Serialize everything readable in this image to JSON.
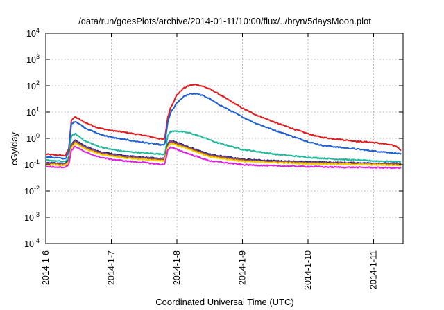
{
  "chart_data": {
    "type": "line",
    "title": "/data/run/goesPlots/archive/2014-01-11/10:00/flux/../bryn/5daysMoon.plot",
    "xlabel": "Coordinated Universal Time (UTC)",
    "ylabel": "cGy/day",
    "yscale": "log",
    "ylim": [
      0.0001,
      10000
    ],
    "xlim": [
      0,
      5.45
    ],
    "grid": true,
    "legend": "none",
    "x_ticks": [
      {
        "value": 0,
        "label": "2014-1-6"
      },
      {
        "value": 1,
        "label": "2014-1-7"
      },
      {
        "value": 2,
        "label": "2014-1-8"
      },
      {
        "value": 3,
        "label": "2014-1-9"
      },
      {
        "value": 4,
        "label": "2014-1-10"
      },
      {
        "value": 5,
        "label": "2014-1-11"
      }
    ],
    "y_ticks": [
      {
        "value": 0.0001,
        "base": "10",
        "exp": "-4"
      },
      {
        "value": 0.001,
        "base": "10",
        "exp": "-3"
      },
      {
        "value": 0.01,
        "base": "10",
        "exp": "-2"
      },
      {
        "value": 0.1,
        "base": "10",
        "exp": "-1"
      },
      {
        "value": 1,
        "base": "10",
        "exp": "0"
      },
      {
        "value": 10,
        "base": "10",
        "exp": "1"
      },
      {
        "value": 100,
        "base": "10",
        "exp": "2"
      },
      {
        "value": 1000,
        "base": "10",
        "exp": "3"
      },
      {
        "value": 10000,
        "base": "10",
        "exp": "4"
      }
    ],
    "series": [
      {
        "name": "red",
        "color": "#e31a1c",
        "x": [
          0,
          0.3,
          0.35,
          0.39,
          0.45,
          0.6,
          0.8,
          1.0,
          1.2,
          1.5,
          1.8,
          1.82,
          1.86,
          1.9,
          2.0,
          2.1,
          2.2,
          2.3,
          2.4,
          2.5,
          2.6,
          2.8,
          3.0,
          3.2,
          3.5,
          3.8,
          4.0,
          4.2,
          4.5,
          4.8,
          5.0,
          5.2,
          5.35,
          5.42
        ],
        "values": [
          0.25,
          0.22,
          0.4,
          5,
          6.5,
          4,
          2.5,
          2.0,
          1.7,
          1.3,
          0.9,
          1.2,
          6,
          14,
          45,
          80,
          105,
          110,
          95,
          75,
          55,
          28,
          14,
          8,
          4,
          2.2,
          1.5,
          1.1,
          0.9,
          0.75,
          0.7,
          0.6,
          0.5,
          0.35
        ]
      },
      {
        "name": "blue",
        "color": "#1f5fd6",
        "x": [
          0,
          0.3,
          0.35,
          0.39,
          0.45,
          0.6,
          0.8,
          1.0,
          1.2,
          1.5,
          1.8,
          1.82,
          1.86,
          1.9,
          2.0,
          2.1,
          2.2,
          2.3,
          2.4,
          2.5,
          2.6,
          2.8,
          3.0,
          3.2,
          3.5,
          3.8,
          4.0,
          4.2,
          4.5,
          4.8,
          5.0,
          5.2,
          5.35,
          5.42
        ],
        "values": [
          0.2,
          0.17,
          0.3,
          3.5,
          4.5,
          2.5,
          1.5,
          1.1,
          0.9,
          0.7,
          0.55,
          0.7,
          4,
          9,
          22,
          38,
          50,
          50,
          42,
          32,
          22,
          12,
          6.5,
          3.8,
          2.0,
          1.1,
          0.75,
          0.55,
          0.45,
          0.38,
          0.33,
          0.3,
          0.27,
          0.25
        ]
      },
      {
        "name": "teal",
        "color": "#1fb89a",
        "x": [
          0,
          0.3,
          0.35,
          0.39,
          0.45,
          0.6,
          0.8,
          1.0,
          1.2,
          1.5,
          1.8,
          1.82,
          1.86,
          1.9,
          2.0,
          2.2,
          2.4,
          2.6,
          3.0,
          3.5,
          4.0,
          4.5,
          5.0,
          5.42
        ],
        "values": [
          0.15,
          0.13,
          0.2,
          1.2,
          1.5,
          0.8,
          0.5,
          0.38,
          0.32,
          0.28,
          0.25,
          0.3,
          1.2,
          1.8,
          1.9,
          1.6,
          1.1,
          0.7,
          0.38,
          0.25,
          0.19,
          0.16,
          0.14,
          0.13
        ]
      },
      {
        "name": "navy",
        "color": "#262673",
        "x": [
          0,
          0.3,
          0.35,
          0.39,
          0.45,
          0.6,
          0.8,
          1.0,
          1.2,
          1.5,
          1.8,
          1.82,
          1.86,
          1.9,
          2.0,
          2.2,
          2.5,
          3.0,
          3.5,
          4.0,
          4.5,
          5.0,
          5.42
        ],
        "values": [
          0.12,
          0.11,
          0.15,
          0.6,
          0.85,
          0.5,
          0.32,
          0.26,
          0.22,
          0.19,
          0.17,
          0.2,
          0.6,
          0.85,
          0.7,
          0.45,
          0.25,
          0.16,
          0.14,
          0.13,
          0.12,
          0.115,
          0.11
        ]
      },
      {
        "name": "purple",
        "color": "#8e44ad",
        "x": [
          0,
          0.3,
          0.35,
          0.39,
          0.45,
          0.6,
          0.8,
          1.0,
          1.2,
          1.5,
          1.8,
          1.82,
          1.86,
          1.9,
          2.0,
          2.2,
          2.5,
          3.0,
          3.5,
          4.0,
          4.5,
          5.0,
          5.42
        ],
        "values": [
          0.115,
          0.105,
          0.14,
          0.55,
          0.78,
          0.46,
          0.3,
          0.24,
          0.2,
          0.18,
          0.16,
          0.19,
          0.55,
          0.78,
          0.64,
          0.42,
          0.23,
          0.15,
          0.13,
          0.12,
          0.115,
          0.11,
          0.105
        ]
      },
      {
        "name": "brown",
        "color": "#a0522d",
        "x": [
          0,
          0.3,
          0.35,
          0.39,
          0.45,
          0.6,
          0.8,
          1.0,
          1.2,
          1.5,
          1.8,
          1.82,
          1.86,
          1.9,
          2.0,
          2.2,
          2.5,
          3.0,
          3.5,
          4.0,
          4.5,
          5.0,
          5.42
        ],
        "values": [
          0.108,
          0.1,
          0.13,
          0.5,
          0.72,
          0.43,
          0.28,
          0.225,
          0.19,
          0.17,
          0.15,
          0.18,
          0.5,
          0.72,
          0.6,
          0.4,
          0.22,
          0.145,
          0.125,
          0.115,
          0.11,
          0.105,
          0.1
        ]
      },
      {
        "name": "yellow",
        "color": "#f5d000",
        "x": [
          0,
          0.3,
          0.35,
          0.39,
          0.45,
          0.6,
          0.8,
          1.0,
          1.2,
          1.5,
          1.8,
          1.82,
          1.86,
          1.9,
          2.0,
          2.2,
          2.5,
          3.0,
          3.5,
          4.0,
          4.5,
          5.0,
          5.42
        ],
        "values": [
          0.1,
          0.095,
          0.12,
          0.45,
          0.65,
          0.4,
          0.26,
          0.21,
          0.18,
          0.16,
          0.14,
          0.17,
          0.45,
          0.65,
          0.55,
          0.37,
          0.2,
          0.135,
          0.12,
          0.11,
          0.105,
          0.1,
          0.095
        ]
      },
      {
        "name": "magenta",
        "color": "#e020e0",
        "x": [
          0,
          0.3,
          0.35,
          0.39,
          0.45,
          0.6,
          0.8,
          1.0,
          1.2,
          1.5,
          1.8,
          1.82,
          1.86,
          1.9,
          2.0,
          2.2,
          2.5,
          3.0,
          3.5,
          4.0,
          4.5,
          5.0,
          5.42
        ],
        "values": [
          0.085,
          0.08,
          0.1,
          0.35,
          0.5,
          0.3,
          0.2,
          0.16,
          0.14,
          0.12,
          0.1,
          0.12,
          0.35,
          0.45,
          0.38,
          0.25,
          0.14,
          0.1,
          0.09,
          0.085,
          0.08,
          0.078,
          0.075
        ]
      }
    ]
  }
}
